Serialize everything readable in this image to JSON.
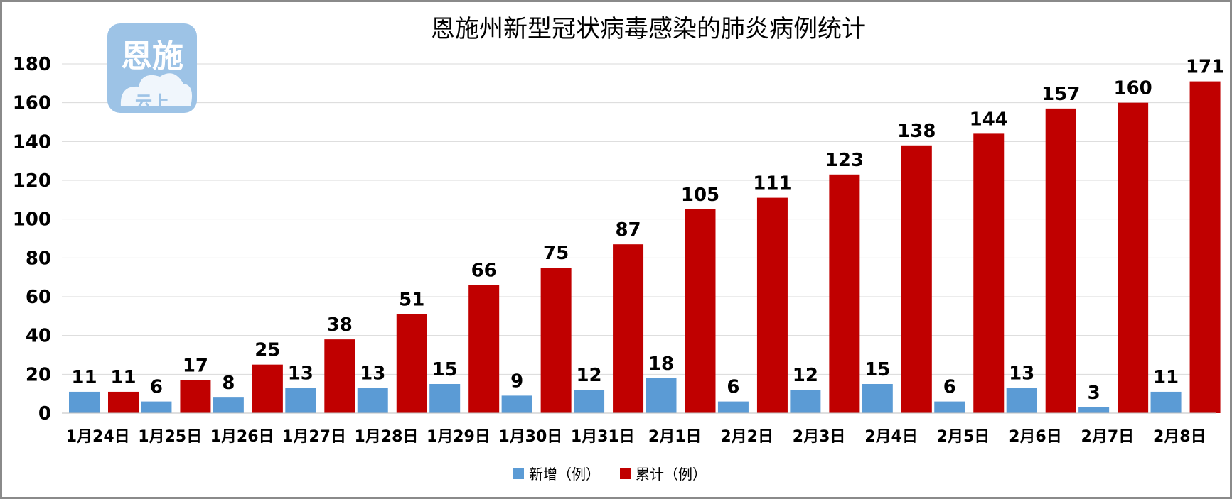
{
  "chart_data": {
    "type": "bar",
    "title": "恩施州新型冠状病毒感染的肺炎病例统计",
    "categories": [
      "1月24日",
      "1月25日",
      "1月26日",
      "1月27日",
      "1月28日",
      "1月29日",
      "1月30日",
      "1月31日",
      "2月1日",
      "2月2日",
      "2月3日",
      "2月4日",
      "2月5日",
      "2月6日",
      "2月7日",
      "2月8日"
    ],
    "series": [
      {
        "name": "新增（例）",
        "color": "#5b9bd5",
        "values": [
          11,
          6,
          8,
          13,
          13,
          15,
          9,
          12,
          18,
          6,
          12,
          15,
          6,
          13,
          3,
          11
        ]
      },
      {
        "name": "累计（例）",
        "color": "#c00000",
        "values": [
          11,
          17,
          25,
          38,
          51,
          66,
          75,
          87,
          105,
          111,
          123,
          138,
          144,
          157,
          160,
          171
        ]
      }
    ],
    "ylim": [
      0,
      180
    ],
    "yticks": [
      0,
      20,
      40,
      60,
      80,
      100,
      120,
      140,
      160,
      180
    ],
    "grid": true,
    "legend": "bottom"
  },
  "watermark": {
    "line1": "恩施",
    "line2": "云上",
    "color": "#9dc3e6"
  }
}
